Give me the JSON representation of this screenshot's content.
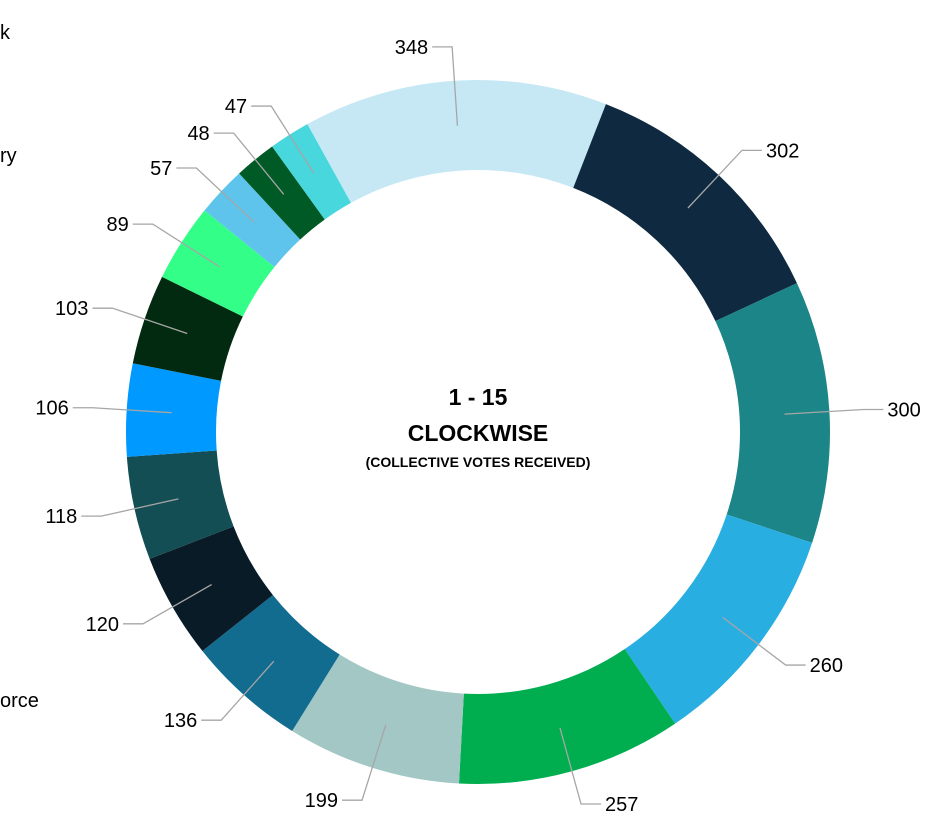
{
  "chart_data": {
    "type": "pie",
    "donut": true,
    "direction": "clockwise",
    "center_text": {
      "line1": "1 - 15",
      "line2": "CLOCKWISE",
      "line3": "(COLLECTIVE VOTES RECEIVED)"
    },
    "values": [
      348,
      302,
      300,
      260,
      257,
      199,
      136,
      120,
      118,
      106,
      103,
      89,
      57,
      48,
      47
    ],
    "colors": [
      "#c5e8f4",
      "#0f2a40",
      "#1b8587",
      "#29aee2",
      "#00ae50",
      "#a2c7c5",
      "#126c8f",
      "#091b27",
      "#124e54",
      "#0099ff",
      "#022a11",
      "#33ff88",
      "#5ec4ec",
      "#005a25",
      "#48d7dd"
    ],
    "data_labels_shown": true
  },
  "cropped_text": {
    "top": "k",
    "upper": "ry",
    "lower": "orce"
  }
}
